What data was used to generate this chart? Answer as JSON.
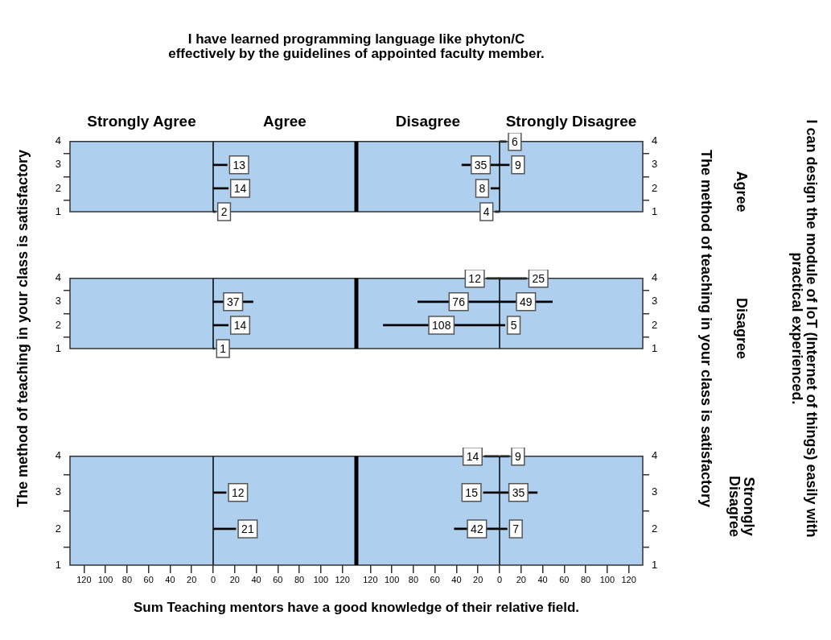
{
  "chart_data": [
    {
      "type": "bar",
      "orientation": "horizontal",
      "title": "I have learned programming language like phyton/C effectively by the guidelines of appointed faculty member.",
      "categories": [
        "4",
        "3",
        "2",
        "1"
      ],
      "series": [
        {
          "name": "Strongly Agree",
          "color": "#000000",
          "values": [
            null,
            null,
            null,
            null
          ]
        },
        {
          "name": "Agree",
          "color": "#000000",
          "values": [
            null,
            13,
            14,
            2
          ]
        }
      ],
      "xlim": [
        -133,
        133
      ],
      "ref_lines": [
        {
          "axis": "x",
          "value": 0
        }
      ],
      "data_labels": true,
      "tick_labels": "y"
    },
    {
      "type": "bar",
      "orientation": "horizontal",
      "categories": [
        "4",
        "3",
        "2",
        "1"
      ],
      "series": [
        {
          "name": "Disagree",
          "color": "#000000",
          "values": [
            null,
            35,
            8,
            4
          ],
          "base": [
            null,
            -35,
            -8,
            -4
          ]
        },
        {
          "name": "Strongly Disagree",
          "color": "#000000",
          "values": [
            6,
            9,
            null,
            null
          ]
        }
      ],
      "xlim": [
        -133,
        133
      ],
      "ref_lines": [
        {
          "axis": "x",
          "value": 0
        }
      ],
      "data_labels": true,
      "tick_labels": "y",
      "annotations": [
        "Agree"
      ]
    },
    {
      "type": "bar",
      "orientation": "horizontal",
      "ylabel": "The method of teaching in your class is satisfactory",
      "categories": [
        "4",
        "3",
        "2",
        "1"
      ],
      "series": [
        {
          "color": "#000000",
          "values": [
            null,
            37,
            14,
            1
          ]
        }
      ],
      "xlim": [
        -133,
        133
      ],
      "ref_lines": [
        {
          "axis": "x",
          "value": 0
        }
      ],
      "data_labels": true,
      "tick_labels": "y"
    },
    {
      "type": "bar",
      "orientation": "horizontal",
      "y2label": "The method of teaching in your class is satisfactory",
      "categories": [
        "4",
        "3",
        "2",
        "1"
      ],
      "series": [
        {
          "color": "#000000",
          "values": [
            12,
            76,
            108,
            null
          ],
          "base": [
            -12,
            -76,
            -108,
            null
          ]
        },
        {
          "color": "#000000",
          "values": [
            25,
            49,
            5,
            null
          ]
        }
      ],
      "xlim": [
        -133,
        133
      ],
      "ref_lines": [
        {
          "axis": "x",
          "value": 0
        }
      ],
      "data_labels": true,
      "tick_labels": "y",
      "annotations": [
        "Disagree",
        "I can design the module of IoT (Internet of things) easily with practical experienced."
      ]
    },
    {
      "type": "bar",
      "orientation": "horizontal",
      "xlabel": "Sum Teaching mentors have a good knowledge of their relative field.",
      "categories": [
        "4",
        "3",
        "2",
        "1"
      ],
      "series": [
        {
          "color": "#000000",
          "values": [
            null,
            12,
            21,
            null
          ]
        }
      ],
      "xlim": [
        -133,
        133
      ],
      "xticks": [
        {
          "value": -120,
          "label": "120"
        },
        {
          "value": -100,
          "label": "100"
        },
        {
          "value": -80,
          "label": "80"
        },
        {
          "value": -60,
          "label": "60"
        },
        {
          "value": -40,
          "label": "40"
        },
        {
          "value": -20,
          "label": "20"
        },
        0,
        20,
        40,
        60,
        80,
        100,
        120
      ],
      "ref_lines": [
        {
          "axis": "x",
          "value": 0
        }
      ],
      "data_labels": true
    },
    {
      "type": "bar",
      "orientation": "horizontal",
      "categories": [
        "4",
        "3",
        "2",
        "1"
      ],
      "series": [
        {
          "color": "#000000",
          "values": [
            14,
            15,
            42,
            null
          ],
          "base": [
            -14,
            -15,
            -42,
            null
          ]
        },
        {
          "color": "#000000",
          "values": [
            9,
            35,
            7,
            null
          ]
        }
      ],
      "xlim": [
        -133,
        133
      ],
      "xticks": [
        {
          "value": -120,
          "label": "120"
        },
        {
          "value": -100,
          "label": "100"
        },
        {
          "value": -80,
          "label": "80"
        },
        {
          "value": -60,
          "label": "60"
        },
        {
          "value": -40,
          "label": "40"
        },
        {
          "value": -20,
          "label": "20"
        },
        0,
        20,
        40,
        60,
        80,
        100,
        120
      ],
      "ref_lines": [
        {
          "axis": "x",
          "value": 0
        }
      ],
      "data_labels": true,
      "annotations": [
        "Strongly Disagree"
      ]
    }
  ]
}
